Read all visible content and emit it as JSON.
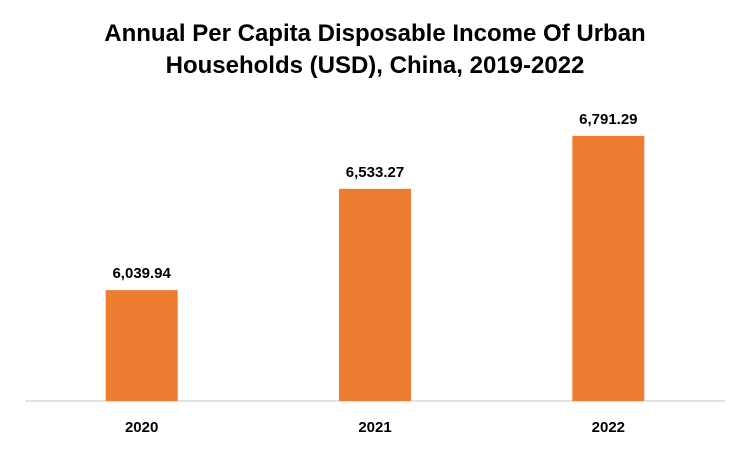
{
  "title_line1": "Annual Per Capita Disposable Income Of Urban",
  "title_line2": "Households (USD), China, 2019-2022",
  "chart_data": {
    "type": "bar",
    "title": "Annual Per Capita Disposable Income Of Urban Households (USD), China, 2019-2022",
    "categories": [
      "2020",
      "2021",
      "2022"
    ],
    "values": [
      6039.94,
      6533.27,
      6791.29
    ],
    "labels": [
      "6,039.94",
      "6,533.27",
      "6,791.29"
    ],
    "xlabel": "",
    "ylabel": "",
    "ylim": [
      5500,
      7000
    ],
    "bar_color": "#ED7D31",
    "axis_color": "#D9D9D9",
    "grid": false,
    "legend": "none"
  }
}
